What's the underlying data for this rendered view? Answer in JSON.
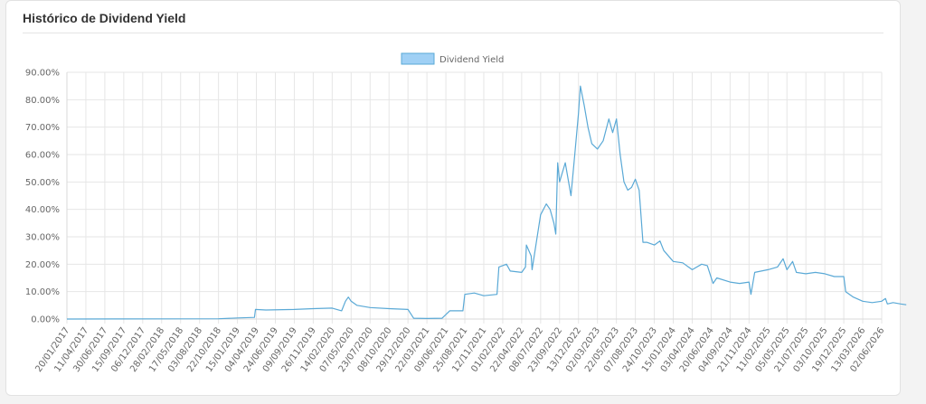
{
  "card": {
    "title": "Histórico de Dividend Yield"
  },
  "chart_data": {
    "type": "line",
    "title": "",
    "xlabel": "",
    "ylabel": "",
    "legend": {
      "position": "top",
      "entries": [
        "Dividend Yield"
      ]
    },
    "grid": true,
    "ylim": [
      0,
      90
    ],
    "y_ticks": [
      "90.00%",
      "80.00%",
      "70.00%",
      "60.00%",
      "50.00%",
      "40.00%",
      "30.00%",
      "20.00%",
      "10.00%",
      "0.00%"
    ],
    "x_ticks": [
      "20/01/2017",
      "11/04/2017",
      "30/06/2017",
      "15/09/2017",
      "06/12/2017",
      "28/02/2018",
      "17/05/2018",
      "03/08/2018",
      "22/10/2018",
      "15/01/2019",
      "04/04/2019",
      "24/06/2019",
      "09/09/2019",
      "26/11/2019",
      "14/02/2020",
      "07/05/2020",
      "23/07/2020",
      "08/10/2020",
      "29/12/2020",
      "22/03/2021",
      "09/06/2021",
      "25/08/2021",
      "12/11/2021",
      "01/02/2022",
      "22/04/2022",
      "08/07/2022",
      "23/09/2022",
      "13/12/2022",
      "02/03/2023",
      "22/05/2023",
      "07/08/2023",
      "24/10/2023",
      "15/01/2024",
      "03/04/2024",
      "20/06/2024",
      "04/09/2024",
      "21/11/2024",
      "11/02/2025",
      "05/05/2025",
      "21/07/2025",
      "03/10/2025",
      "19/12/2025",
      "13/03/2026",
      "02/06/2026"
    ],
    "colors": {
      "line": "#5aa9d6",
      "legend_fill": "#9fd0f5",
      "legend_border": "#5aa9d6",
      "grid": "#e6e6e6"
    },
    "series": [
      {
        "name": "Dividend Yield",
        "points": [
          [
            0,
            0
          ],
          [
            8,
            0.1
          ],
          [
            9,
            0.4
          ],
          [
            9.9,
            0.6
          ],
          [
            9.95,
            3.5
          ],
          [
            10.5,
            3.3
          ],
          [
            12,
            3.5
          ],
          [
            13,
            3.8
          ],
          [
            14,
            4.0
          ],
          [
            14.5,
            3.0
          ],
          [
            14.7,
            6.5
          ],
          [
            14.85,
            8.0
          ],
          [
            15,
            6.5
          ],
          [
            15.3,
            5.0
          ],
          [
            16,
            4.2
          ],
          [
            17,
            3.8
          ],
          [
            18,
            3.5
          ],
          [
            18.3,
            0.3
          ],
          [
            19,
            0.2
          ],
          [
            19.8,
            0.3
          ],
          [
            20.2,
            3.0
          ],
          [
            20.9,
            3.0
          ],
          [
            21,
            9.0
          ],
          [
            21.5,
            9.5
          ],
          [
            22,
            8.5
          ],
          [
            22.7,
            9.0
          ],
          [
            22.8,
            19.0
          ],
          [
            23.2,
            20.0
          ],
          [
            23.4,
            17.5
          ],
          [
            24,
            17.0
          ],
          [
            24.2,
            19.0
          ],
          [
            24.25,
            27.0
          ],
          [
            24.5,
            23.0
          ],
          [
            24.55,
            18.0
          ],
          [
            25,
            38.0
          ],
          [
            25.3,
            42.0
          ],
          [
            25.5,
            40.0
          ],
          [
            25.7,
            35.0
          ],
          [
            25.8,
            31.0
          ],
          [
            25.9,
            57.0
          ],
          [
            26,
            50.0
          ],
          [
            26.3,
            57.0
          ],
          [
            26.6,
            45.0
          ],
          [
            26.8,
            60.0
          ],
          [
            27,
            75.0
          ],
          [
            27.1,
            85.0
          ],
          [
            27.3,
            78.0
          ],
          [
            27.5,
            70.0
          ],
          [
            27.7,
            64.0
          ],
          [
            28,
            62.0
          ],
          [
            28.3,
            65.0
          ],
          [
            28.6,
            73.0
          ],
          [
            28.8,
            68.0
          ],
          [
            29,
            73.0
          ],
          [
            29.2,
            60.0
          ],
          [
            29.4,
            50.0
          ],
          [
            29.6,
            47.0
          ],
          [
            29.8,
            48.0
          ],
          [
            30,
            51.0
          ],
          [
            30.2,
            47.0
          ],
          [
            30.4,
            28.0
          ],
          [
            30.6,
            28.0
          ],
          [
            31,
            27.0
          ],
          [
            31.3,
            28.5
          ],
          [
            31.5,
            25.0
          ],
          [
            32,
            21.0
          ],
          [
            32.5,
            20.5
          ],
          [
            33,
            18.0
          ],
          [
            33.5,
            20.0
          ],
          [
            33.8,
            19.5
          ],
          [
            34.1,
            13.0
          ],
          [
            34.3,
            15.0
          ],
          [
            35,
            13.5
          ],
          [
            35.5,
            13.0
          ],
          [
            36,
            13.5
          ],
          [
            36.1,
            9.0
          ],
          [
            36.3,
            17.0
          ],
          [
            37,
            18.0
          ],
          [
            37.5,
            19.0
          ],
          [
            37.8,
            22.0
          ],
          [
            38,
            18.0
          ],
          [
            38.3,
            21.0
          ],
          [
            38.5,
            17.0
          ],
          [
            39,
            16.5
          ],
          [
            39.5,
            17.0
          ],
          [
            40,
            16.5
          ],
          [
            40.5,
            15.5
          ],
          [
            41,
            15.5
          ],
          [
            41.1,
            10.0
          ],
          [
            41.5,
            8.0
          ],
          [
            42,
            6.5
          ],
          [
            42.5,
            6.0
          ],
          [
            43,
            6.5
          ],
          [
            43.2,
            7.5
          ],
          [
            43.3,
            5.5
          ],
          [
            43.6,
            6.0
          ],
          [
            44,
            5.5
          ],
          [
            44.3,
            5.2
          ]
        ]
      }
    ]
  }
}
